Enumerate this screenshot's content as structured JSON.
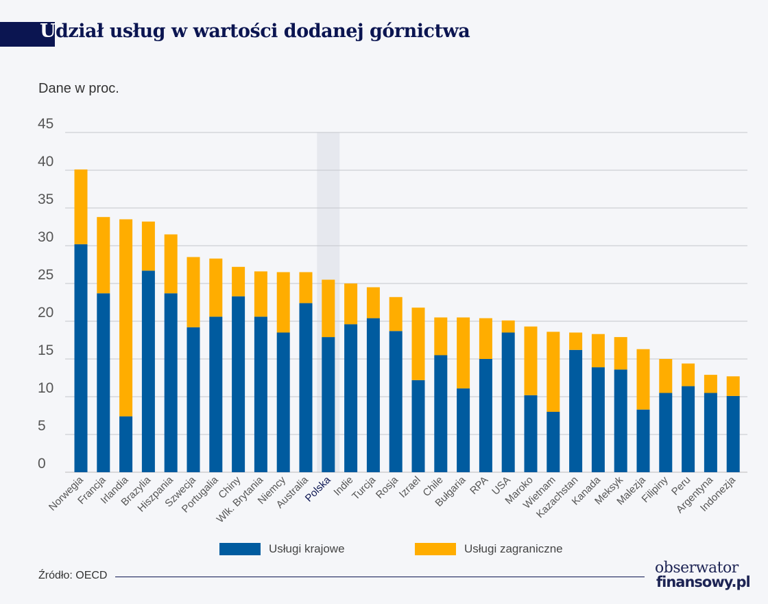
{
  "title_first_letter": "U",
  "title_rest": "dział usług w wartości dodanej górnictwa",
  "subtitle": "Dane w proc.",
  "source": "Źródło: OECD",
  "logo": {
    "line1": "obserwator",
    "line2": "finansowy.pl"
  },
  "colors": {
    "domestic": "#005b9f",
    "foreign": "#ffad00",
    "title": "#0b1551",
    "highlight": "#e6e8ee"
  },
  "chart_data": {
    "type": "bar",
    "stacked": true,
    "ylim": [
      0,
      45
    ],
    "yticks": [
      "0",
      "5",
      "10",
      "15",
      "20",
      "25",
      "30",
      "35",
      "40",
      "45"
    ],
    "grid": true,
    "legend_position": "bottom",
    "highlight_category": "Polska",
    "categories": [
      "Norwegia",
      "Francja",
      "Irlandia",
      "Brazylia",
      "Hiszpania",
      "Szwecja",
      "Portugalia",
      "Chiny",
      "Wlk. Brytania",
      "Niemcy",
      "Australia",
      "Polska",
      "Indie",
      "Turcja",
      "Rosja",
      "Izrael",
      "Chile",
      "Bułgaria",
      "RPA",
      "USA",
      "Maroko",
      "Wietnam",
      "Kazachstan",
      "Kanada",
      "Meksyk",
      "Malezja",
      "Filipiny",
      "Peru",
      "Argentyna",
      "Indonezja"
    ],
    "series": [
      {
        "name": "Usługi krajowe",
        "values": [
          30.2,
          23.7,
          7.4,
          26.7,
          23.7,
          19.2,
          20.6,
          23.3,
          20.6,
          18.5,
          22.4,
          17.9,
          19.6,
          20.4,
          18.7,
          12.2,
          15.5,
          11.1,
          15.0,
          18.5,
          10.2,
          8.0,
          16.2,
          13.9,
          13.6,
          8.3,
          10.5,
          11.4,
          10.5,
          10.1
        ]
      },
      {
        "name": "Usługi zagraniczne",
        "values": [
          9.9,
          10.1,
          26.1,
          6.5,
          7.8,
          9.3,
          7.7,
          3.9,
          6.0,
          8.0,
          4.1,
          7.6,
          5.4,
          4.1,
          4.5,
          9.6,
          5.0,
          9.4,
          5.4,
          1.6,
          9.1,
          10.6,
          2.3,
          4.4,
          4.3,
          8.0,
          4.5,
          3.0,
          2.4,
          2.6
        ]
      }
    ]
  }
}
